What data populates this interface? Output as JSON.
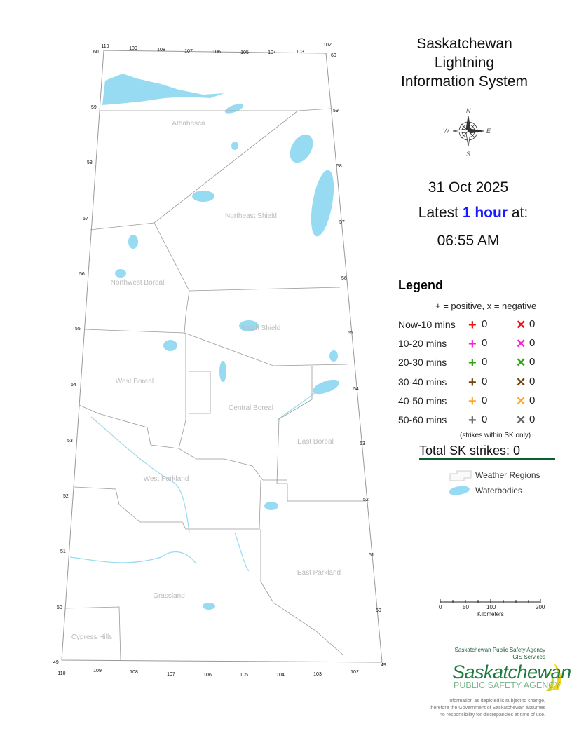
{
  "title": [
    "Saskatchewan",
    "Lightning",
    "Information System"
  ],
  "date": "31 Oct 2025",
  "latest": {
    "prefix": "Latest ",
    "highlight": "1 hour",
    "suffix": " at:"
  },
  "time": "06:55 AM",
  "legend": {
    "heading": "Legend",
    "key": "+ = positive, x = negative",
    "rows": [
      {
        "label": "Now-10 mins",
        "color": "#e8131b",
        "positive": "0",
        "negative": "0"
      },
      {
        "label": "10-20 mins",
        "color": "#ff1fcf",
        "positive": "0",
        "negative": "0"
      },
      {
        "label": "20-30 mins",
        "color": "#2ea313",
        "positive": "0",
        "negative": "0"
      },
      {
        "label": "30-40 mins",
        "color": "#6b4511",
        "positive": "0",
        "negative": "0"
      },
      {
        "label": "40-50 mins",
        "color": "#ffa826",
        "positive": "0",
        "negative": "0"
      },
      {
        "label": "50-60 mins",
        "color": "#666666",
        "positive": "0",
        "negative": "0"
      }
    ],
    "note": "(strikes within SK only)",
    "total": "Total SK strikes: 0",
    "weather_regions": "Weather Regions",
    "waterbodies": "Waterbodies"
  },
  "scale": {
    "ticks": [
      "0",
      "50",
      "100",
      "200"
    ],
    "unit": "Kilometers"
  },
  "agency": {
    "line1": "Saskatchewan Public Safety Agency",
    "line2": "GIS  Services",
    "logo_main": "Saskatchewan",
    "logo_sub": "PUBLIC SAFETY AGENCY"
  },
  "disclaimer": [
    "Information as depicted is subject to change,",
    "therefore the Government of Saskatchewan assumes",
    "no responsibility for discrepancies at time of use."
  ],
  "map": {
    "regions": [
      "Athabasca",
      "Northeast Shield",
      "Northwest Boreal",
      "South Shield",
      "West Boreal",
      "Central Boreal",
      "East Boreal",
      "West Parkland",
      "East Parkland",
      "Grassland",
      "Cypress Hills"
    ],
    "lat_labels": [
      "60",
      "59",
      "58",
      "57",
      "56",
      "55",
      "54",
      "53",
      "52",
      "51",
      "50",
      "49"
    ],
    "lon_top": [
      "110",
      "109",
      "108",
      "107",
      "106",
      "105",
      "104",
      "103",
      "102"
    ],
    "lon_bottom": [
      "110",
      "109",
      "108",
      "107",
      "106",
      "105",
      "104",
      "103",
      "102"
    ],
    "water_color": "#97dbf2"
  }
}
